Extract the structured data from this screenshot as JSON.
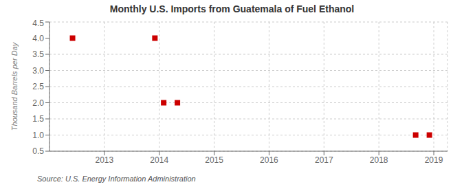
{
  "chart_data": {
    "type": "scatter",
    "title": "Monthly U.S. Imports from Guatemala of Fuel Ethanol",
    "ylabel": "Thousand Barrels per Day",
    "annotations": [
      "Source: U.S. Energy Information Administration"
    ],
    "x": [
      2012.42,
      2013.92,
      2014.08,
      2014.33,
      2018.67,
      2018.92
    ],
    "values": [
      4.0,
      4.0,
      2.0,
      2.0,
      1.0,
      1.0
    ],
    "color": "#cc0000",
    "marker": "square",
    "xlim": [
      2012.0,
      2019.25
    ],
    "xticks": [
      2013,
      2014,
      2015,
      2016,
      2017,
      2018,
      2019
    ],
    "ylim": [
      0.5,
      4.5
    ],
    "yticks": [
      0.5,
      {
        "value": 1.0,
        "label": "1.0"
      },
      1.5,
      {
        "value": 2.0,
        "label": "2.0"
      },
      2.5,
      {
        "value": 3.0,
        "label": "3.0"
      },
      3.5,
      {
        "value": 4.0,
        "label": "4.0"
      },
      4.5
    ],
    "grid": true
  }
}
